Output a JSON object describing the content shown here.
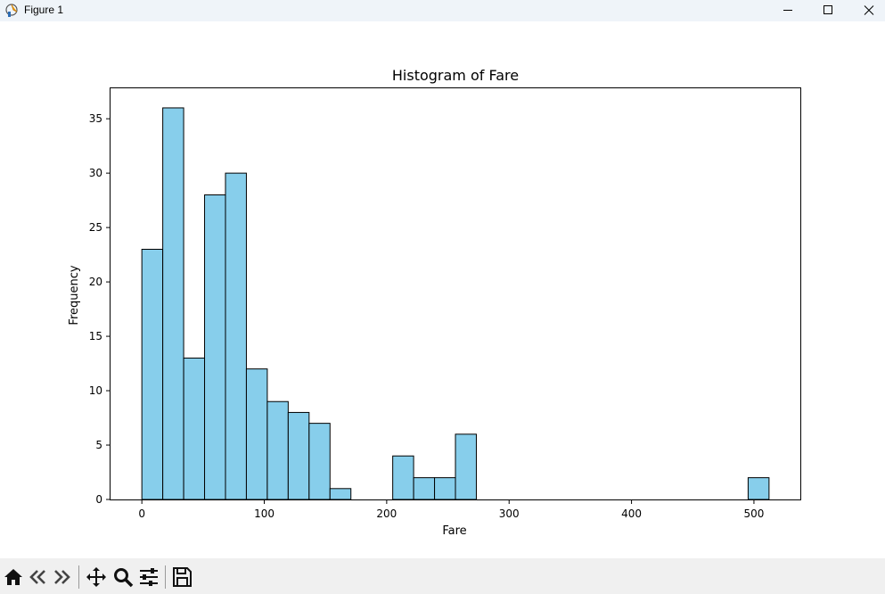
{
  "window": {
    "title": "Figure 1"
  },
  "toolbar": {
    "buttons": [
      {
        "name": "home-icon"
      },
      {
        "name": "back-icon"
      },
      {
        "name": "forward-icon"
      },
      {
        "name": "pan-icon"
      },
      {
        "name": "zoom-icon"
      },
      {
        "name": "configure-subplots-icon"
      },
      {
        "name": "save-icon"
      }
    ]
  },
  "chart_data": {
    "type": "bar",
    "title": "Histogram of Fare",
    "xlabel": "Fare",
    "ylabel": "Frequency",
    "bin_start": 0,
    "bin_width": 17.0776,
    "counts": [
      23,
      36,
      13,
      28,
      30,
      12,
      9,
      8,
      7,
      1,
      0,
      0,
      4,
      2,
      2,
      6,
      0,
      0,
      0,
      0,
      0,
      0,
      0,
      0,
      0,
      0,
      0,
      0,
      0,
      2
    ],
    "xlim": [
      -25.6,
      537.9
    ],
    "ylim": [
      0,
      37.8
    ],
    "xticks": [
      0,
      100,
      200,
      300,
      400,
      500
    ],
    "yticks": [
      0,
      5,
      10,
      15,
      20,
      25,
      30,
      35
    ],
    "bar_color": "#87ceeb",
    "edge_color": "#000000",
    "grid": false
  }
}
